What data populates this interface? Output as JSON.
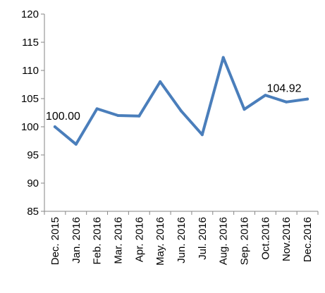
{
  "chart_data": {
    "type": "line",
    "title": "",
    "xlabel": "",
    "ylabel": "",
    "categories": [
      "Dec. 2015",
      "Jan. 2016",
      "Feb. 2016",
      "Mar. 2016",
      "Apr. 2016",
      "May. 2016",
      "Jun. 2016",
      "Jul. 2016",
      "Aug. 2016",
      "Sep. 2016",
      "Oct.2016",
      "Nov.2016",
      "Dec.2016"
    ],
    "series": [
      {
        "values": [
          100.0,
          96.9,
          103.2,
          102.0,
          101.9,
          108.0,
          102.8,
          98.6,
          112.3,
          103.1,
          105.6,
          104.4,
          104.92
        ],
        "color": "#4a7ebb"
      }
    ],
    "ylim": [
      85,
      120
    ],
    "yticks": [
      "85",
      "90",
      "95",
      "100",
      "105",
      "110",
      "115",
      "120"
    ],
    "data_labels": [
      {
        "index": 0,
        "text": "100.00"
      },
      {
        "index": 12,
        "text": "104.92"
      }
    ],
    "grid": false,
    "legend": "none"
  }
}
